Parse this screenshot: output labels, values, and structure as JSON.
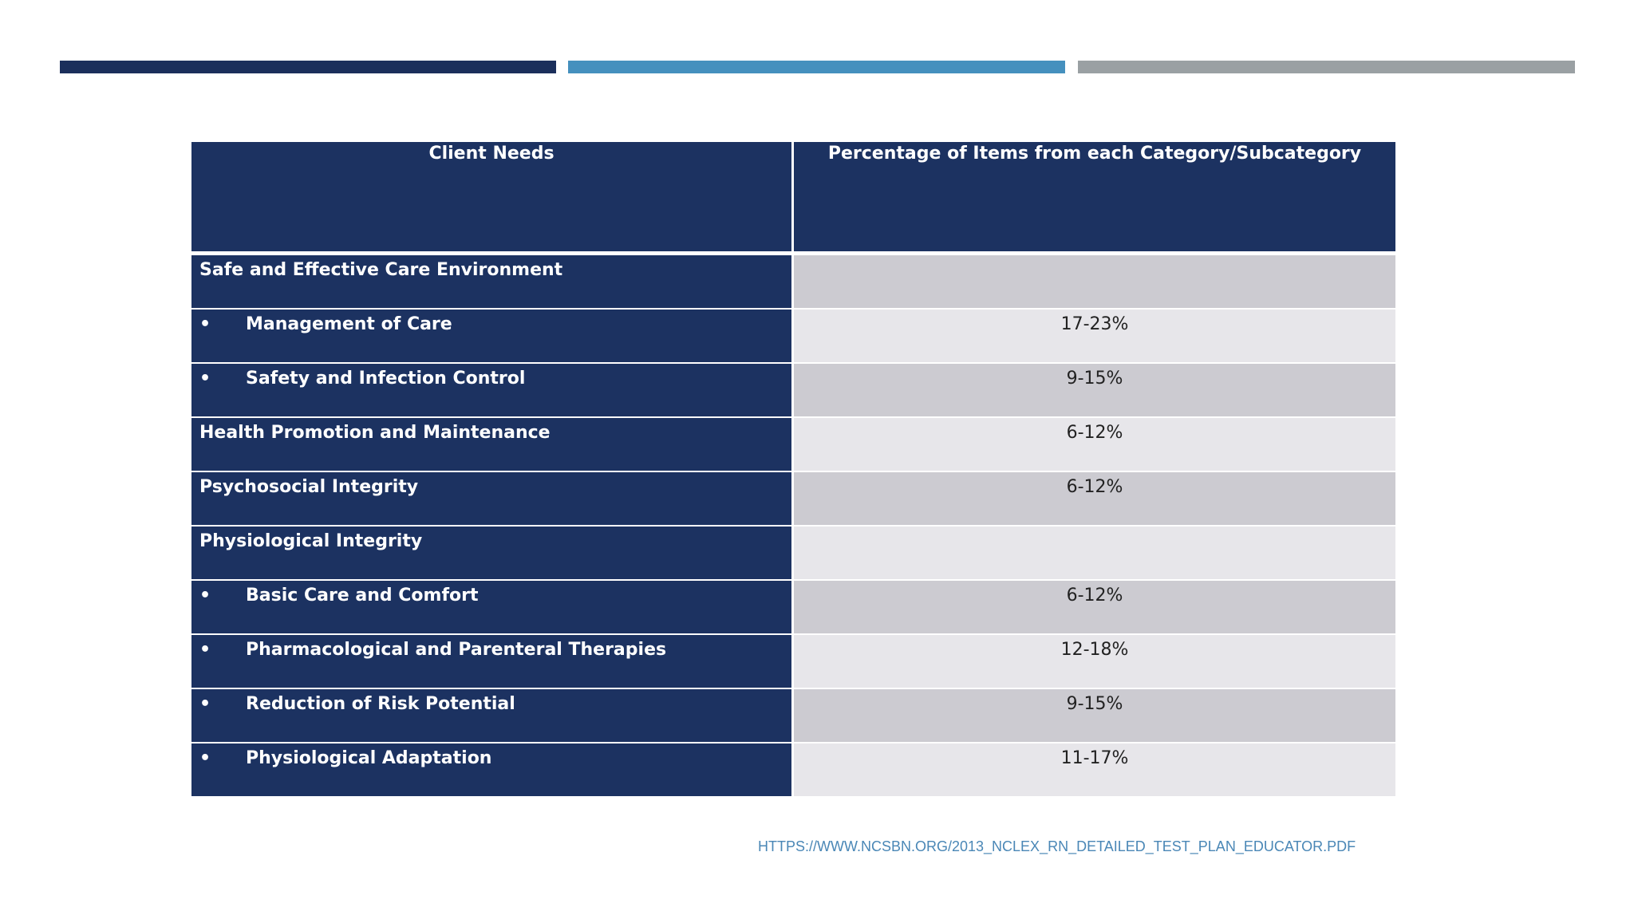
{
  "colors": {
    "bar_dark": "#1b2f5b",
    "bar_blue": "#4590be",
    "bar_gray": "#9aa0a3",
    "header_bg": "#1c3261",
    "left_bg": "#1c3261",
    "right_dark": "#cccbd1",
    "right_light": "#e7e6ea",
    "link": "#4a87b6"
  },
  "table": {
    "headers": [
      "Client Needs",
      "Percentage of Items from each Category/Subcategory"
    ],
    "rows": [
      {
        "label": "Safe and Effective Care Environment",
        "bullet": "",
        "value": ""
      },
      {
        "label": "Management of Care",
        "bullet": "•",
        "value": "17-23%"
      },
      {
        "label": "Safety and Infection Control",
        "bullet": "•",
        "value": "9-15%"
      },
      {
        "label": "Health Promotion and Maintenance",
        "bullet": "",
        "value": "6-12%"
      },
      {
        "label": "Psychosocial Integrity",
        "bullet": "",
        "value": "6-12%"
      },
      {
        "label": "Physiological Integrity",
        "bullet": "",
        "value": ""
      },
      {
        "label": "Basic Care and Comfort",
        "bullet": "•",
        "value": "6-12%"
      },
      {
        "label": "Pharmacological and Parenteral Therapies",
        "bullet": "•",
        "value": "12-18%"
      },
      {
        "label": "Reduction of Risk Potential",
        "bullet": "•",
        "value": "9-15%"
      },
      {
        "label": "Physiological Adaptation",
        "bullet": "•",
        "value": "11-17%"
      }
    ]
  },
  "source": {
    "text": "HTTPS://WWW.NCSBN.ORG/2013_NCLEX_RN_DETAILED_TEST_PLAN_EDUCATOR.PDF"
  }
}
